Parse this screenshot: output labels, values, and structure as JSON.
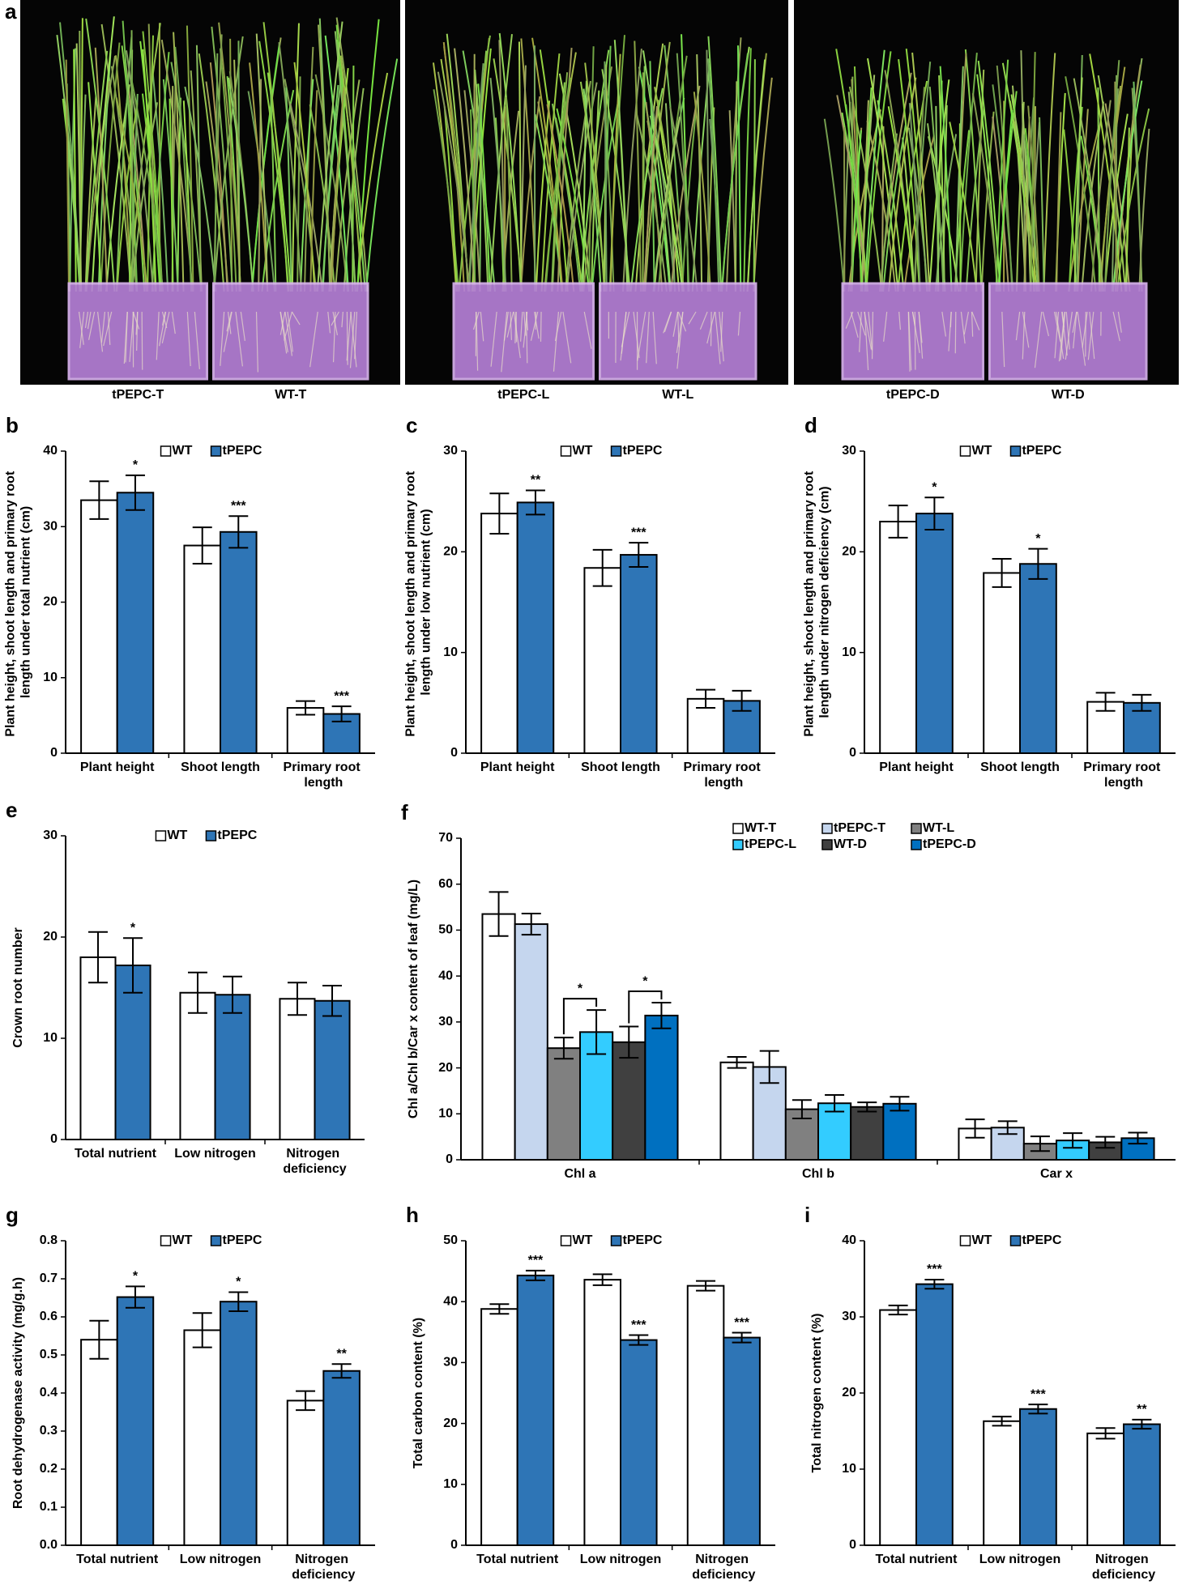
{
  "photos": {
    "panel": "a",
    "labels": [
      "tPEPC-T",
      "WT-T",
      "tPEPC-L",
      "WT-L",
      "tPEPC-D",
      "WT-D"
    ]
  },
  "chart_data": [
    {
      "type": "bar",
      "panel": "b",
      "ylabel": "Plant height, shoot length and primary root length under total nutrient (cm)",
      "categories": [
        "Plant height",
        "Shoot length",
        "Primary root length"
      ],
      "series": [
        {
          "name": "WT",
          "color": "#ffffff",
          "values": [
            33.5,
            27.5,
            6.0
          ],
          "errors": [
            2.5,
            2.4,
            0.9
          ]
        },
        {
          "name": "tPEPC",
          "color": "#2e75b6",
          "values": [
            34.5,
            29.3,
            5.2
          ],
          "errors": [
            2.3,
            2.1,
            1.0
          ],
          "labels": [
            "*",
            "***",
            "***"
          ]
        }
      ],
      "ylim": [
        0,
        40
      ],
      "yticks": [
        0,
        10,
        20,
        30,
        40
      ],
      "legend": "top"
    },
    {
      "type": "bar",
      "panel": "c",
      "ylabel": "Plant height, shoot length and primary root length under low nutrient (cm)",
      "categories": [
        "Plant height",
        "Shoot length",
        "Primary root length"
      ],
      "series": [
        {
          "name": "WT",
          "color": "#ffffff",
          "values": [
            23.8,
            18.4,
            5.4
          ],
          "errors": [
            2.0,
            1.8,
            0.9
          ]
        },
        {
          "name": "tPEPC",
          "color": "#2e75b6",
          "values": [
            24.9,
            19.7,
            5.2
          ],
          "errors": [
            1.2,
            1.2,
            1.0
          ],
          "labels": [
            "**",
            "***",
            null
          ]
        }
      ],
      "ylim": [
        0,
        30
      ],
      "yticks": [
        0,
        10,
        20,
        30
      ],
      "legend": "top"
    },
    {
      "type": "bar",
      "panel": "d",
      "ylabel": "Plant height, shoot length and primary root length under nitrogen deficiency (cm)",
      "categories": [
        "Plant height",
        "Shoot length",
        "Primary root length"
      ],
      "series": [
        {
          "name": "WT",
          "color": "#ffffff",
          "values": [
            23.0,
            17.9,
            5.1
          ],
          "errors": [
            1.6,
            1.4,
            0.9
          ]
        },
        {
          "name": "tPEPC",
          "color": "#2e75b6",
          "values": [
            23.8,
            18.8,
            5.0
          ],
          "errors": [
            1.6,
            1.5,
            0.8
          ],
          "labels": [
            "*",
            "*",
            null
          ]
        }
      ],
      "ylim": [
        0,
        30
      ],
      "yticks": [
        0,
        10,
        20,
        30
      ],
      "legend": "top"
    },
    {
      "type": "bar",
      "panel": "e",
      "ylabel": "Crown root number",
      "categories": [
        "Total nutrient",
        "Low nitrogen",
        "Nitrogen deficiency"
      ],
      "series": [
        {
          "name": "WT",
          "color": "#ffffff",
          "values": [
            18.0,
            14.5,
            13.9
          ],
          "errors": [
            2.5,
            2.0,
            1.6
          ]
        },
        {
          "name": "tPEPC",
          "color": "#2e75b6",
          "values": [
            17.2,
            14.3,
            13.7
          ],
          "errors": [
            2.7,
            1.8,
            1.5
          ],
          "labels": [
            "*",
            null,
            null
          ]
        }
      ],
      "ylim": [
        0,
        30
      ],
      "yticks": [
        0,
        10,
        20,
        30
      ],
      "legend": "top"
    },
    {
      "type": "bar",
      "panel": "f",
      "ylabel": "Chl a/Chl b/Car x content of leaf (mg/L)",
      "categories": [
        "Chl a",
        "Chl b",
        "Car x"
      ],
      "series": [
        {
          "name": "WT-T",
          "color": "#ffffff",
          "values": [
            53.5,
            21.2,
            6.8
          ],
          "errors": [
            4.8,
            1.2,
            2.0
          ]
        },
        {
          "name": "tPEPC-T",
          "color": "#c5d6ee",
          "values": [
            51.3,
            20.2,
            7.0
          ],
          "errors": [
            2.3,
            3.5,
            1.4
          ]
        },
        {
          "name": "WT-L",
          "color": "#808080",
          "values": [
            24.3,
            11.0,
            3.5
          ],
          "errors": [
            2.3,
            2.0,
            1.6
          ]
        },
        {
          "name": "tPEPC-L",
          "color": "#33ccff",
          "values": [
            27.8,
            12.3,
            4.2
          ],
          "errors": [
            4.8,
            1.8,
            1.6
          ],
          "labels": [
            "*",
            null,
            null
          ]
        },
        {
          "name": "WT-D",
          "color": "#404040",
          "values": [
            25.6,
            11.5,
            3.8
          ],
          "errors": [
            3.4,
            1.0,
            1.2
          ]
        },
        {
          "name": "tPEPC-D",
          "color": "#0070c0",
          "values": [
            31.4,
            12.2,
            4.7
          ],
          "errors": [
            2.8,
            1.5,
            1.2
          ],
          "labels": [
            "*",
            null,
            null
          ]
        }
      ],
      "ylim": [
        0,
        70
      ],
      "yticks": [
        0,
        10,
        20,
        30,
        40,
        50,
        60,
        70
      ],
      "legend": "top"
    },
    {
      "type": "bar",
      "panel": "g",
      "ylabel": "Root dehydrogenase activity (mg/g.h)",
      "categories": [
        "Total nutrient",
        "Low nitrogen",
        "Nitrogen deficiency"
      ],
      "series": [
        {
          "name": "WT",
          "color": "#ffffff",
          "values": [
            0.54,
            0.565,
            0.38
          ],
          "errors": [
            0.05,
            0.045,
            0.025
          ]
        },
        {
          "name": "tPEPC",
          "color": "#2e75b6",
          "values": [
            0.652,
            0.64,
            0.458
          ],
          "errors": [
            0.028,
            0.025,
            0.018
          ],
          "labels": [
            "*",
            "*",
            "**"
          ]
        }
      ],
      "ylim": [
        0,
        0.8
      ],
      "yticks": [
        {
          "value": 0,
          "label": "0.0"
        },
        0.1,
        0.2,
        0.3,
        0.4,
        0.5,
        0.6,
        0.7,
        0.8
      ],
      "legend": "top"
    },
    {
      "type": "bar",
      "panel": "h",
      "ylabel": "Total carbon content (%)",
      "categories": [
        "Total nutrient",
        "Low nitrogen",
        "Nitrogen deficiency"
      ],
      "series": [
        {
          "name": "WT",
          "color": "#ffffff",
          "values": [
            38.8,
            43.6,
            42.6
          ],
          "errors": [
            0.8,
            0.9,
            0.8
          ]
        },
        {
          "name": "tPEPC",
          "color": "#2e75b6",
          "values": [
            44.3,
            33.7,
            34.1
          ],
          "errors": [
            0.8,
            0.8,
            0.8
          ],
          "labels": [
            "***",
            "***",
            "***"
          ]
        }
      ],
      "ylim": [
        0,
        50
      ],
      "yticks": [
        0,
        10,
        20,
        30,
        40,
        50
      ],
      "legend": "top"
    },
    {
      "type": "bar",
      "panel": "i",
      "ylabel": "Total nitrogen content (%)",
      "categories": [
        "Total nutrient",
        "Low nitrogen",
        "Nitrogen deficiency"
      ],
      "series": [
        {
          "name": "WT",
          "color": "#ffffff",
          "values": [
            30.9,
            16.3,
            14.7
          ],
          "errors": [
            0.6,
            0.6,
            0.7
          ]
        },
        {
          "name": "tPEPC",
          "color": "#2e75b6",
          "values": [
            34.3,
            17.9,
            15.9
          ],
          "errors": [
            0.6,
            0.6,
            0.6
          ],
          "labels": [
            "***",
            "***",
            "**"
          ]
        }
      ],
      "ylim": [
        0,
        40
      ],
      "yticks": [
        0,
        10,
        20,
        30,
        40
      ],
      "legend": "top"
    }
  ]
}
